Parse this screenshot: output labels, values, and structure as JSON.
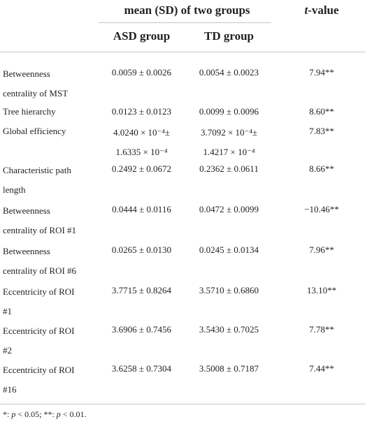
{
  "header": {
    "group_title": "mean (SD) of two groups",
    "t_italic": "t",
    "t_rest": "-value",
    "asd_label": "ASD group",
    "td_label": "TD group"
  },
  "rows": [
    {
      "label_lines": [
        "Betweenness",
        "centrality of MST"
      ],
      "asd": [
        "0.0059 ± 0.0026"
      ],
      "td": [
        "0.0054 ± 0.0023"
      ],
      "t": "7.94**"
    },
    {
      "label_lines": [
        "Tree hierarchy"
      ],
      "asd": [
        "0.0123 ± 0.0123"
      ],
      "td": [
        "0.0099 ± 0.0096"
      ],
      "t": "8.60**"
    },
    {
      "label_lines": [
        "Global efficiency"
      ],
      "asd": [
        "4.0240 × 10⁻⁴±",
        "1.6335 × 10⁻⁴"
      ],
      "td": [
        "3.7092 × 10⁻⁴±",
        "1.4217 × 10⁻⁴"
      ],
      "t": "7.83**"
    },
    {
      "label_lines": [
        "Characteristic path",
        "length"
      ],
      "asd": [
        "0.2492 ± 0.0672"
      ],
      "td": [
        "0.2362 ± 0.0611"
      ],
      "t": "8.66**"
    },
    {
      "label_lines": [
        "Betweenness",
        "centrality of ROI #1"
      ],
      "asd": [
        "0.0444 ± 0.0116"
      ],
      "td": [
        "0.0472 ± 0.0099"
      ],
      "t": "−10.46**"
    },
    {
      "label_lines": [
        "Betweenness",
        "centrality of ROI #6"
      ],
      "asd": [
        "0.0265 ± 0.0130"
      ],
      "td": [
        "0.0245 ± 0.0134"
      ],
      "t": "7.96**"
    },
    {
      "label_lines": [
        "Eccentricity of ROI",
        "#1"
      ],
      "asd": [
        "3.7715 ± 0.8264"
      ],
      "td": [
        "3.5710 ± 0.6860"
      ],
      "t": "13.10**"
    },
    {
      "label_lines": [
        "Eccentricity of ROI",
        "#2"
      ],
      "asd": [
        "3.6906 ± 0.7456"
      ],
      "td": [
        "3.5430 ± 0.7025"
      ],
      "t": "7.78**"
    },
    {
      "label_lines": [
        "Eccentricity of ROI",
        "#16"
      ],
      "asd": [
        "3.6258 ± 0.7304"
      ],
      "td": [
        "3.5008 ± 0.7187"
      ],
      "t": "7.44**"
    }
  ],
  "footnote": {
    "s1": "*: ",
    "p1": "p",
    "s2": " < 0.05; **: ",
    "p2": "p",
    "s3": " < 0.01."
  }
}
